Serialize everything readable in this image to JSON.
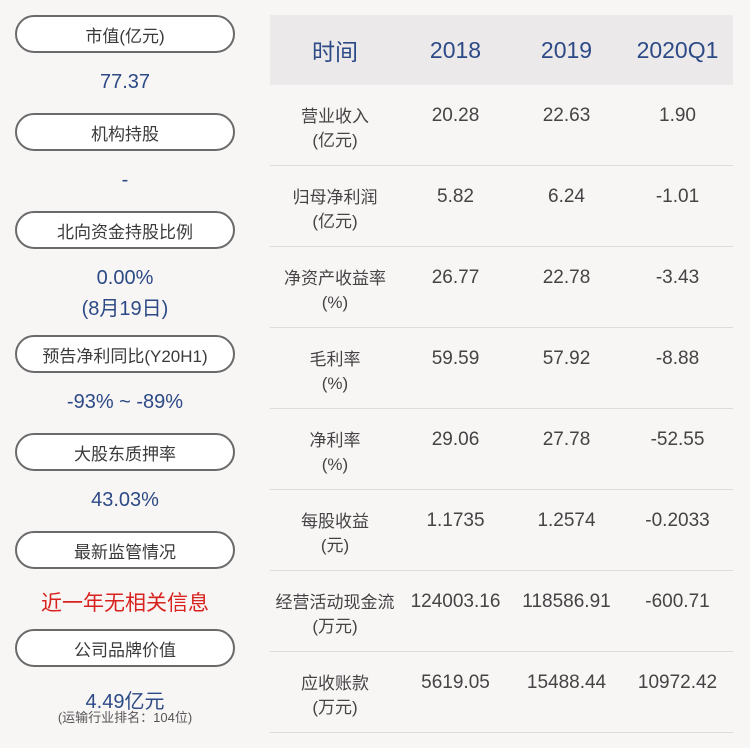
{
  "left_panel": [
    {
      "label": "市值(亿元)",
      "value": "77.37"
    },
    {
      "label": "机构持股",
      "value": "-"
    },
    {
      "label": "北向资金持股比例",
      "value": "0.00%",
      "value2": "(8月19日)"
    },
    {
      "label": "预告净利同比(Y20H1)",
      "value": "-93% ~ -89%"
    },
    {
      "label": "大股东质押率",
      "value": "43.03%"
    },
    {
      "label": "最新监管情况",
      "value": "近一年无相关信息"
    },
    {
      "label": "公司品牌价值",
      "value": "4.49亿元",
      "note": "(运输行业排名：104位)"
    }
  ],
  "table": {
    "headers": [
      "时间",
      "2018",
      "2019",
      "2020Q1"
    ],
    "rows": [
      {
        "name": "营业收入",
        "unit": "(亿元)",
        "values": [
          "20.28",
          "22.63",
          "1.90"
        ]
      },
      {
        "name": "归母净利润",
        "unit": "(亿元)",
        "values": [
          "5.82",
          "6.24",
          "-1.01"
        ]
      },
      {
        "name": "净资产收益率",
        "unit": "(%)",
        "values": [
          "26.77",
          "22.78",
          "-3.43"
        ]
      },
      {
        "name": "毛利率",
        "unit": "(%)",
        "values": [
          "59.59",
          "57.92",
          "-8.88"
        ]
      },
      {
        "name": "净利率",
        "unit": "(%)",
        "values": [
          "29.06",
          "27.78",
          "-52.55"
        ]
      },
      {
        "name": "每股收益",
        "unit": "(元)",
        "values": [
          "1.1735",
          "1.2574",
          "-0.2033"
        ]
      },
      {
        "name": "经营活动现金流",
        "unit": "(万元)",
        "values": [
          "124003.16",
          "118586.91",
          "-600.71"
        ]
      },
      {
        "name": "应收账款",
        "unit": "(万元)",
        "values": [
          "5619.05",
          "15488.44",
          "10972.42"
        ]
      }
    ]
  }
}
